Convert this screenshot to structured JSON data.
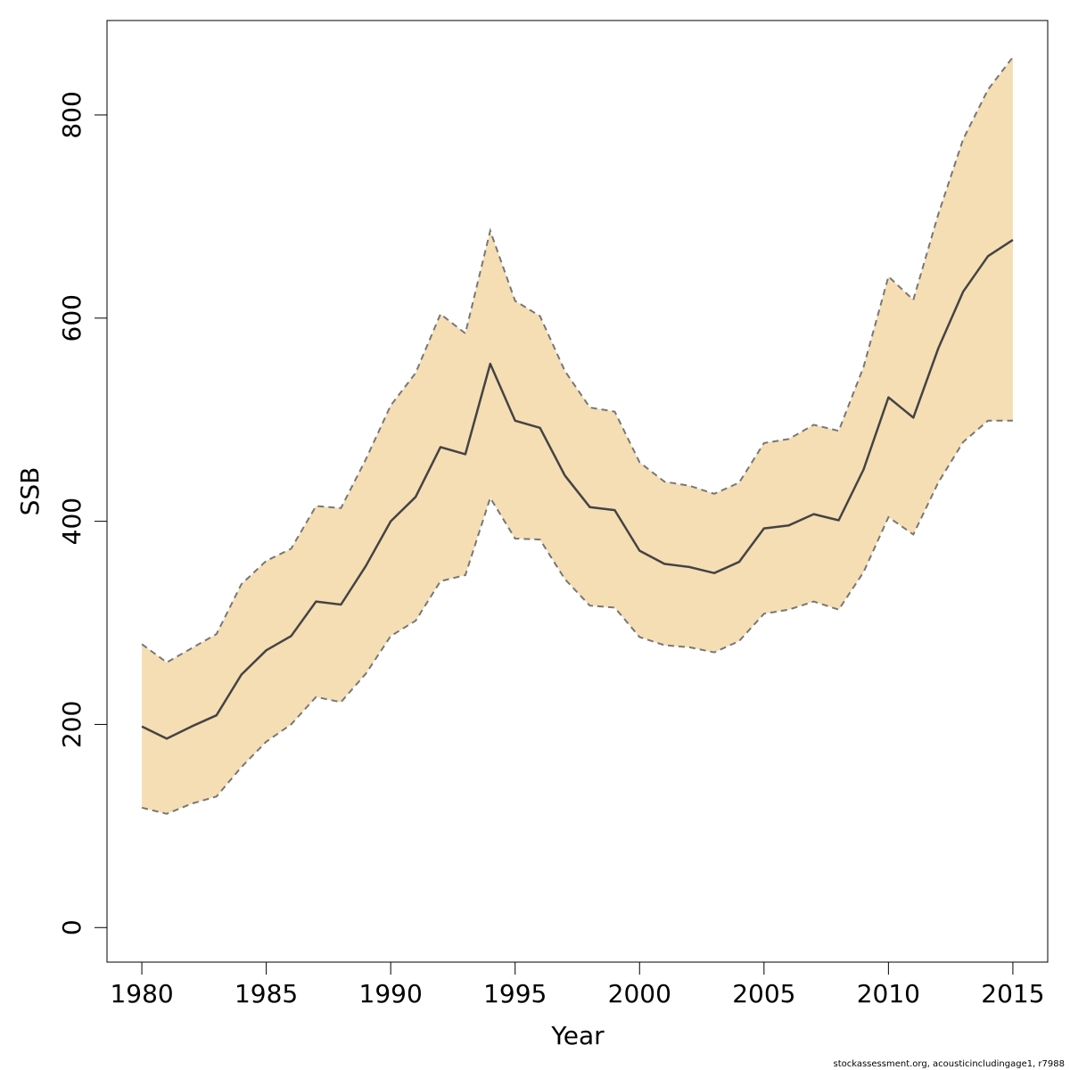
{
  "chart_data": {
    "type": "area",
    "title": "",
    "xlabel": "Year",
    "ylabel": "SSB",
    "xlim": [
      1978.6,
      2016.4
    ],
    "ylim": [
      -34,
      893
    ],
    "x_ticks": [
      1980,
      1985,
      1990,
      1995,
      2000,
      2005,
      2010,
      2015
    ],
    "x_tick_labels": [
      "1980",
      "1985",
      "1990",
      "1995",
      "2000",
      "2005",
      "2010",
      "2015"
    ],
    "y_ticks": [
      0,
      200,
      400,
      600,
      800
    ],
    "y_tick_labels": [
      "0",
      "200",
      "400",
      "600",
      "800"
    ],
    "grid": false,
    "legend": "none",
    "x": [
      1980,
      1981,
      1982,
      1983,
      1984,
      1985,
      1986,
      1987,
      1988,
      1989,
      1990,
      1991,
      1992,
      1993,
      1994,
      1995,
      1996,
      1997,
      1998,
      1999,
      2000,
      2001,
      2002,
      2003,
      2004,
      2005,
      2006,
      2007,
      2008,
      2009,
      2010,
      2011,
      2012,
      2013,
      2014,
      2015
    ],
    "series": [
      {
        "values": [
          198,
          186,
          198,
          209,
          249,
          273,
          287,
          321,
          318,
          356,
          400,
          424,
          473,
          466,
          555,
          499,
          492,
          445,
          414,
          411,
          371,
          358,
          355,
          349,
          360,
          393,
          396,
          407,
          401,
          451,
          522,
          502,
          570,
          626,
          661,
          677
        ]
      },
      {
        "values": [
          279,
          261,
          275,
          289,
          338,
          361,
          373,
          415,
          413,
          461,
          514,
          546,
          604,
          585,
          686,
          617,
          602,
          548,
          512,
          508,
          458,
          439,
          435,
          427,
          438,
          477,
          481,
          495,
          489,
          552,
          641,
          618,
          702,
          776,
          825,
          857
        ]
      },
      {
        "values": [
          118,
          112,
          122,
          129,
          158,
          183,
          200,
          227,
          222,
          250,
          287,
          302,
          341,
          347,
          423,
          383,
          382,
          343,
          317,
          315,
          286,
          278,
          276,
          271,
          282,
          309,
          313,
          321,
          313,
          350,
          404,
          387,
          438,
          478,
          499,
          499
        ]
      }
    ],
    "colors": {
      "band_fill": "#f5deb3",
      "line": "#444444",
      "band_edge": "#777777",
      "axis": "#000000"
    }
  },
  "footer": {
    "credit": "stockassessment.org, acousticincludingage1, r7988"
  }
}
